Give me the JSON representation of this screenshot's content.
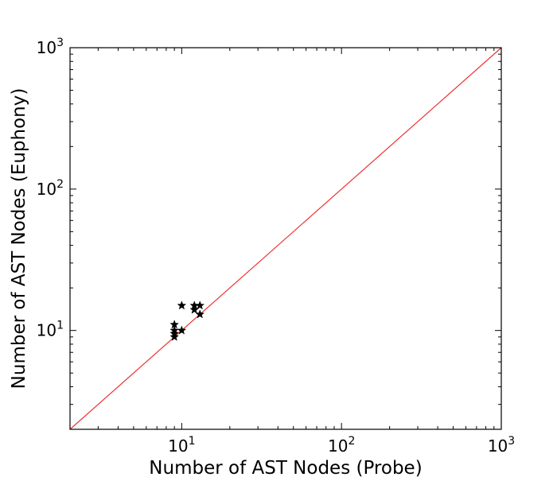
{
  "chart_data": {
    "type": "scatter",
    "title": "",
    "xlabel": "Number of AST Nodes (Probe)",
    "ylabel": "Number of AST Nodes (Euphony)",
    "xscale": "log",
    "yscale": "log",
    "xlim": [
      2,
      1000
    ],
    "ylim": [
      2,
      1000
    ],
    "grid": false,
    "x_ticks": [
      {
        "value": 10,
        "base": "10",
        "exp": "1"
      },
      {
        "value": 100,
        "base": "10",
        "exp": "2"
      },
      {
        "value": 1000,
        "base": "10",
        "exp": "3"
      }
    ],
    "y_ticks": [
      {
        "value": 10,
        "base": "10",
        "exp": "1"
      },
      {
        "value": 100,
        "base": "10",
        "exp": "2"
      },
      {
        "value": 1000,
        "base": "10",
        "exp": "3"
      }
    ],
    "reference_line": {
      "from": [
        2,
        2
      ],
      "to": [
        1000,
        1000
      ],
      "color": "#ee3333"
    },
    "marker": "star",
    "marker_color": "#000000",
    "points": [
      {
        "x": 9,
        "y": 9
      },
      {
        "x": 9,
        "y": 9.5
      },
      {
        "x": 9,
        "y": 10
      },
      {
        "x": 9,
        "y": 11
      },
      {
        "x": 10,
        "y": 10
      },
      {
        "x": 10,
        "y": 15
      },
      {
        "x": 12,
        "y": 14
      },
      {
        "x": 12,
        "y": 15
      },
      {
        "x": 13,
        "y": 13
      },
      {
        "x": 13,
        "y": 15
      }
    ]
  }
}
